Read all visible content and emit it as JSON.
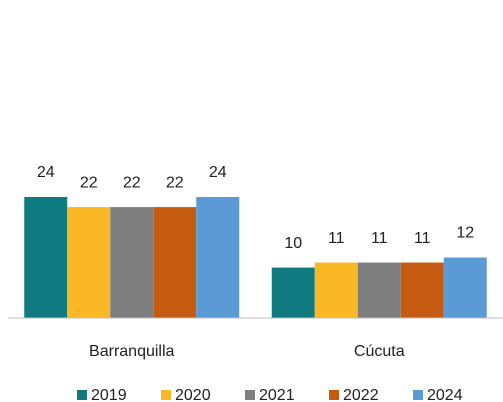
{
  "chart_data": {
    "type": "bar",
    "categories": [
      "Barranquilla",
      "Cúcuta"
    ],
    "series": [
      {
        "name": "2019",
        "color": "#0f7b80",
        "values": [
          24,
          10
        ]
      },
      {
        "name": "2020",
        "color": "#fbb826",
        "values": [
          22,
          11
        ]
      },
      {
        "name": "2021",
        "color": "#7f7f7f",
        "values": [
          22,
          11
        ]
      },
      {
        "name": "2022",
        "color": "#c55a11",
        "values": [
          22,
          11
        ]
      },
      {
        "name": "2024",
        "color": "#5b9bd5",
        "values": [
          24,
          12
        ]
      }
    ],
    "legend": "bottom"
  }
}
